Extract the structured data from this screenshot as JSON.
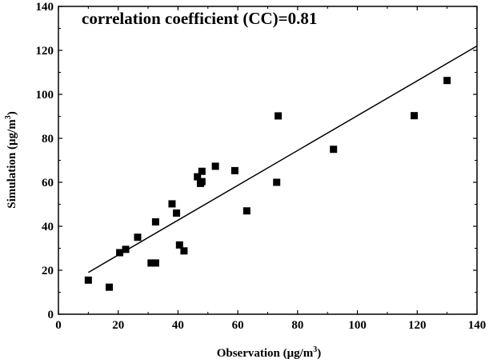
{
  "chart_data": {
    "type": "scatter",
    "title": "",
    "annotation": "correlation coefficient (CC)=0.81",
    "xlabel": {
      "main": "Observation (μg/m",
      "sup": "3",
      "close": ")"
    },
    "ylabel": {
      "main": "Simulation (μg/m",
      "sup": "3",
      "close": ")"
    },
    "xlim": [
      0,
      140
    ],
    "ylim": [
      0,
      140
    ],
    "xticks": [
      0,
      20,
      40,
      60,
      80,
      100,
      120,
      140
    ],
    "yticks": [
      0,
      20,
      40,
      60,
      80,
      100,
      120,
      140
    ],
    "grid": false,
    "marker": "square",
    "marker_color": "#000000",
    "points": [
      {
        "x": 10,
        "y": 15.5
      },
      {
        "x": 17,
        "y": 12.3
      },
      {
        "x": 20.5,
        "y": 28
      },
      {
        "x": 22.5,
        "y": 29.5
      },
      {
        "x": 26.5,
        "y": 35
      },
      {
        "x": 31,
        "y": 23.3
      },
      {
        "x": 32.5,
        "y": 23.3
      },
      {
        "x": 32.5,
        "y": 42
      },
      {
        "x": 38,
        "y": 50.2
      },
      {
        "x": 39.5,
        "y": 46
      },
      {
        "x": 40.5,
        "y": 31.5
      },
      {
        "x": 42,
        "y": 28.8
      },
      {
        "x": 46.5,
        "y": 62.5
      },
      {
        "x": 47.5,
        "y": 59.5
      },
      {
        "x": 48,
        "y": 60.3
      },
      {
        "x": 48,
        "y": 65
      },
      {
        "x": 52.5,
        "y": 67.3
      },
      {
        "x": 59,
        "y": 65.3
      },
      {
        "x": 63,
        "y": 47
      },
      {
        "x": 73,
        "y": 60
      },
      {
        "x": 73.5,
        "y": 90.2
      },
      {
        "x": 92,
        "y": 75
      },
      {
        "x": 119,
        "y": 90.3
      },
      {
        "x": 130,
        "y": 106.3
      }
    ],
    "fit_line": {
      "x": [
        10,
        140
      ],
      "y": [
        19,
        122
      ]
    }
  }
}
